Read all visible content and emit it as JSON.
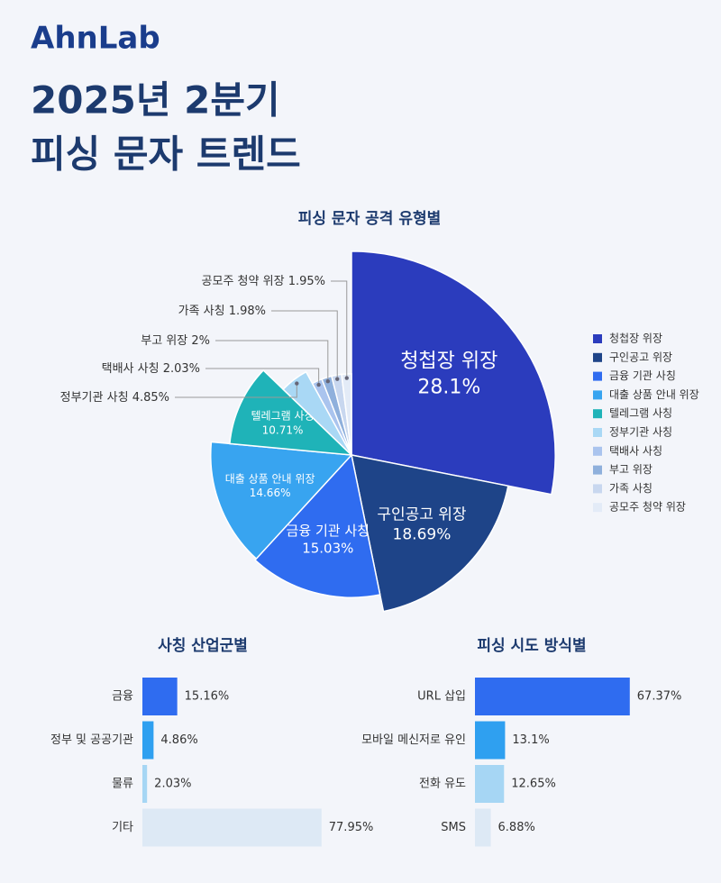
{
  "header": {
    "logo": "AhnLab",
    "title": [
      "2025년 2분기",
      "피싱 문자 트렌드"
    ]
  },
  "chart_data": [
    {
      "type": "pie",
      "title": "피싱 문자 공격 유형별",
      "categories": [
        "청첩장 위장",
        "구인공고 위장",
        "금융 기관 사칭",
        "대출 상품 안내 위장",
        "텔레그램 사칭",
        "정부기관 사칭",
        "택배사 사칭",
        "부고 위장",
        "가족 사칭",
        "공모주 청약 위장"
      ],
      "values": [
        28.1,
        18.69,
        15.03,
        14.66,
        10.71,
        4.85,
        2.03,
        2,
        1.98,
        1.95
      ],
      "value_labels": [
        "28.1%",
        "18.69%",
        "15.03%",
        "14.66%",
        "10.71%",
        "4.85%",
        "2.03%",
        "2%",
        "1.98%",
        "1.95%"
      ],
      "colors": [
        "#2b3cbd",
        "#1e4488",
        "#2f6cf0",
        "#38a4f0",
        "#1fb3b8",
        "#a9d8f5",
        "#aac4ee",
        "#8fb0dc",
        "#c8d7ef",
        "#e3ebf7"
      ]
    },
    {
      "type": "bar",
      "title": "사칭 산업군별",
      "categories": [
        "금융",
        "정부 및 공공기관",
        "물류",
        "기타"
      ],
      "values": [
        15.16,
        4.86,
        2.03,
        77.95
      ],
      "value_labels": [
        "15.16%",
        "4.86%",
        "2.03%",
        "77.95%"
      ],
      "colors": [
        "#2f6cf0",
        "#2fa0f0",
        "#a6d6f4",
        "#dde9f5"
      ]
    },
    {
      "type": "bar",
      "title": "피싱 시도 방식별",
      "categories": [
        "URL 삽입",
        "모바일 메신저로 유인",
        "전화 유도",
        "SMS"
      ],
      "values": [
        67.37,
        13.1,
        12.65,
        6.88
      ],
      "value_labels": [
        "67.37%",
        "13.1%",
        "12.65%",
        "6.88%"
      ],
      "colors": [
        "#2f6cf0",
        "#2fa0f0",
        "#a6d6f4",
        "#dde9f5"
      ]
    }
  ]
}
